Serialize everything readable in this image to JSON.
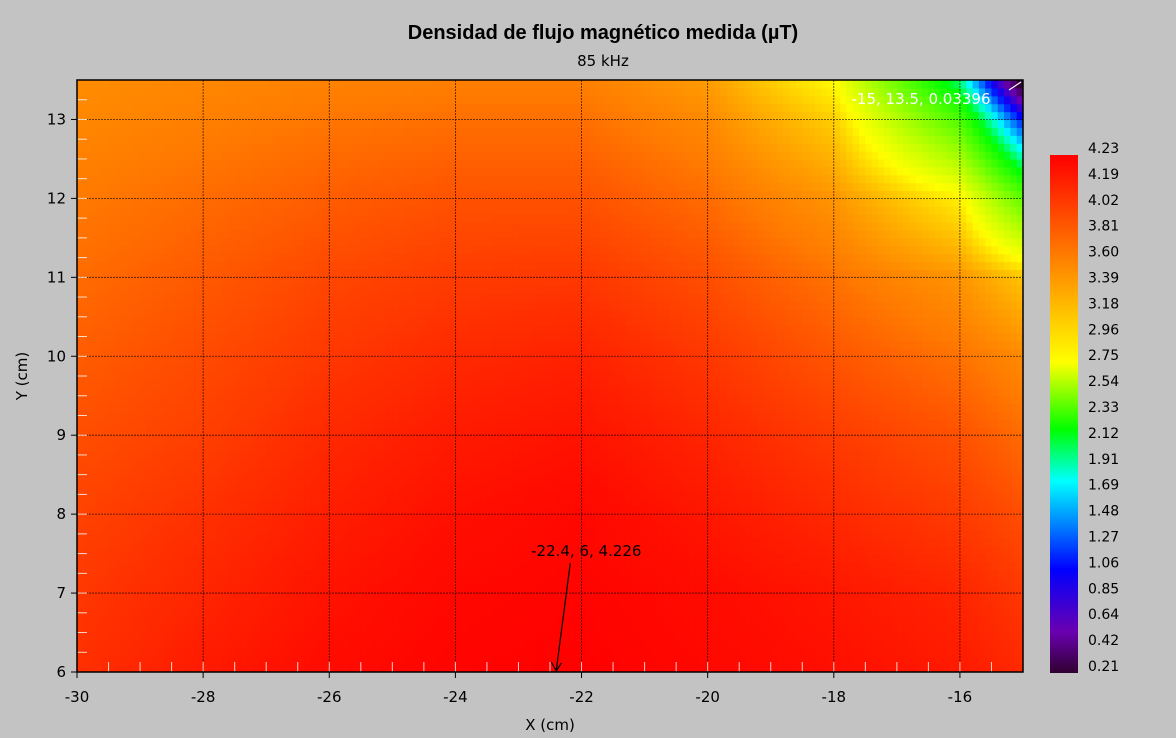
{
  "chart_data": {
    "type": "heatmap",
    "title": "Densidad de flujo magnético medida (µT)",
    "subtitle": "85 kHz",
    "xlabel": "X (cm)",
    "ylabel": "Y (cm)",
    "xlim": [
      -30,
      -15
    ],
    "ylim": [
      6,
      13.5
    ],
    "x_ticks": [
      -30,
      -28,
      -26,
      -24,
      -22,
      -20,
      -18,
      -16
    ],
    "y_ticks": [
      6,
      7,
      8,
      9,
      10,
      11,
      12,
      13
    ],
    "grid": true,
    "x_grid": [
      -30,
      -28,
      -26,
      -24,
      -22,
      -20,
      -18,
      -16,
      -15
    ],
    "y_grid": [
      6,
      7,
      8,
      9,
      10,
      11,
      12,
      13,
      13.5
    ],
    "values": [
      [
        4.1,
        4.16,
        4.2,
        4.22,
        4.226,
        4.21,
        4.19,
        4.16,
        4.12
      ],
      [
        4.08,
        4.13,
        4.18,
        4.21,
        4.22,
        4.2,
        4.17,
        4.13,
        4.08
      ],
      [
        4.05,
        4.1,
        4.15,
        4.19,
        4.21,
        4.17,
        4.12,
        4.07,
        4.02
      ],
      [
        4.02,
        4.06,
        4.12,
        4.16,
        4.18,
        4.13,
        4.07,
        4.01,
        3.94
      ],
      [
        3.98,
        4.03,
        4.08,
        4.12,
        4.14,
        4.08,
        4.0,
        3.92,
        3.84
      ],
      [
        3.94,
        3.99,
        4.04,
        4.07,
        4.08,
        4.02,
        3.92,
        3.8,
        3.62
      ],
      [
        3.9,
        3.94,
        3.98,
        4.01,
        4.01,
        3.94,
        3.8,
        3.45,
        2.6
      ],
      [
        3.85,
        3.88,
        3.91,
        3.93,
        3.93,
        3.84,
        3.58,
        2.5,
        1.1
      ],
      [
        3.83,
        3.85,
        3.87,
        3.88,
        3.88,
        3.77,
        3.4,
        1.9,
        0.034
      ]
    ],
    "colorbar": {
      "min": 0.21,
      "max": 4.23,
      "ticks": [
        "4.23",
        "4.19",
        "4.02",
        "3.81",
        "3.60",
        "3.39",
        "3.18",
        "2.96",
        "2.75",
        "2.54",
        "2.33",
        "2.12",
        "1.91",
        "1.69",
        "1.48",
        "1.27",
        "1.06",
        "0.85",
        "0.64",
        "0.42",
        "0.21"
      ],
      "colors": [
        "#ff0000",
        "#ff7a00",
        "#ffff00",
        "#00ff00",
        "#00ffff",
        "#0000ff",
        "#6a00b0",
        "#300030"
      ]
    },
    "annotations": [
      {
        "text": "-22.4, 6, 4.226",
        "x": -22.4,
        "y": 6,
        "value": 4.226
      },
      {
        "text": "-15, 13.5, 0.03396",
        "x": -15,
        "y": 13.5,
        "value": 0.03396
      }
    ]
  }
}
